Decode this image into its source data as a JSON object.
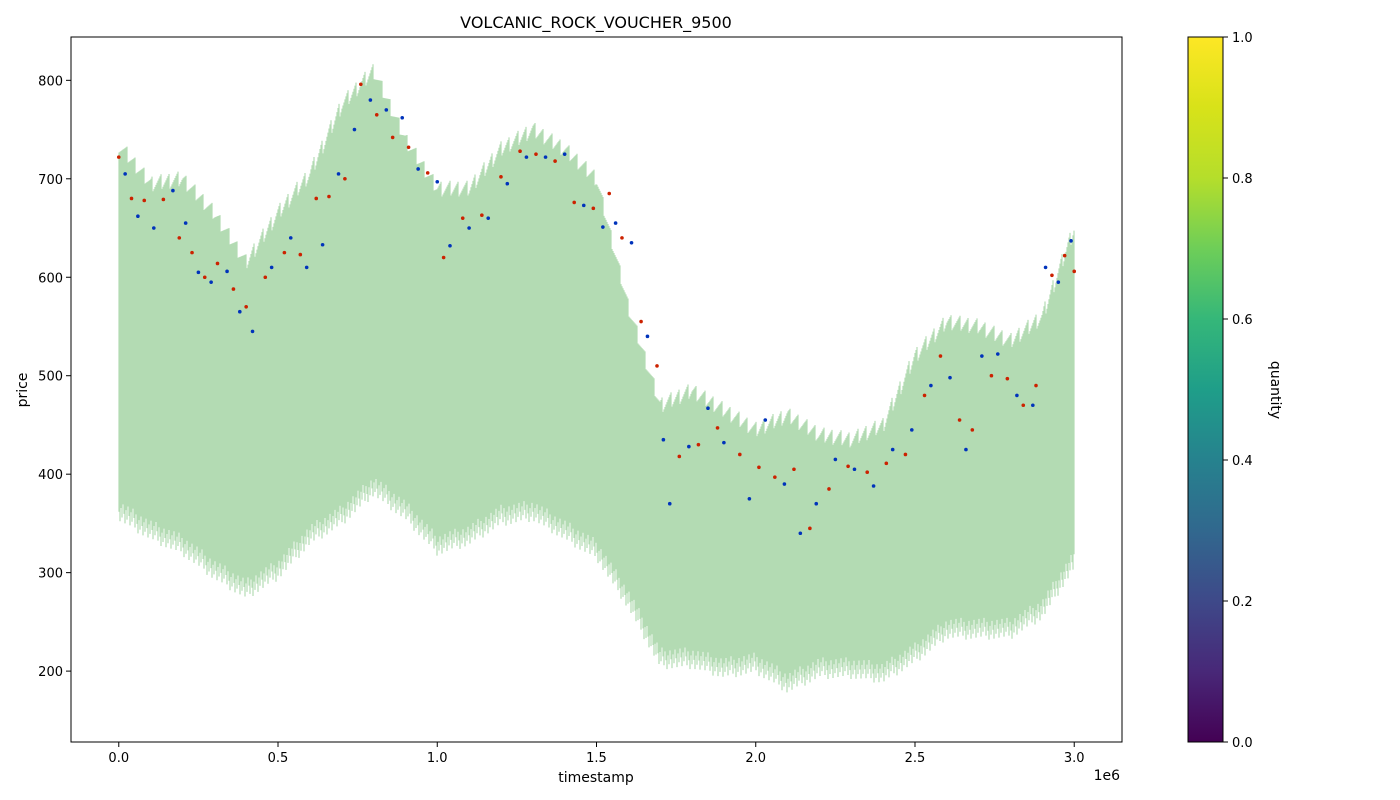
{
  "chart_data": {
    "type": "scatter",
    "title": "VOLCANIC_ROCK_VOUCHER_9500",
    "xlabel": "timestamp",
    "ylabel": "price",
    "x_offset_label": "1e6",
    "x_scale": 1000000,
    "xlim": [
      -0.15,
      3.15
    ],
    "ylim": [
      128,
      844
    ],
    "x_ticks": [
      0.0,
      0.5,
      1.0,
      1.5,
      2.0,
      2.5,
      3.0
    ],
    "x_tick_labels": [
      "0.0",
      "0.5",
      "1.0",
      "1.5",
      "2.0",
      "2.5",
      "3.0"
    ],
    "y_ticks": [
      200,
      300,
      400,
      500,
      600,
      700,
      800
    ],
    "y_tick_labels": [
      "200",
      "300",
      "400",
      "500",
      "600",
      "700",
      "800"
    ],
    "grid": false,
    "colorbar": {
      "label": "quantity",
      "ticks": [
        0.0,
        0.2,
        0.4,
        0.6,
        0.8,
        1.0
      ],
      "tick_labels": [
        "0.0",
        "0.2",
        "0.4",
        "0.6",
        "0.8",
        "1.0"
      ],
      "colormap": "viridis",
      "range": [
        0,
        1
      ]
    },
    "series": [
      {
        "kind": "band",
        "color": "#b3dbb3",
        "x": [
          0.0,
          0.1,
          0.2,
          0.3,
          0.4,
          0.5,
          0.6,
          0.7,
          0.8,
          0.9,
          1.0,
          1.1,
          1.2,
          1.3,
          1.4,
          1.5,
          1.6,
          1.7,
          1.8,
          1.9,
          2.0,
          2.1,
          2.2,
          2.3,
          2.4,
          2.5,
          2.6,
          2.7,
          2.8,
          2.9,
          3.0
        ],
        "low": [
          360,
          340,
          325,
          300,
          280,
          300,
          335,
          355,
          385,
          360,
          325,
          335,
          355,
          360,
          340,
          320,
          270,
          210,
          210,
          200,
          205,
          185,
          200,
          200,
          195,
          215,
          240,
          240,
          240,
          260,
          310
        ],
        "high": [
          735,
          695,
          700,
          665,
          615,
          665,
          705,
          775,
          810,
          740,
          690,
          690,
          730,
          750,
          730,
          700,
          570,
          470,
          485,
          465,
          445,
          460,
          440,
          435,
          450,
          520,
          555,
          550,
          535,
          560,
          650
        ]
      },
      {
        "kind": "trades",
        "color": "#cc2200",
        "x": [
          0.0,
          0.04,
          0.08,
          0.14,
          0.19,
          0.23,
          0.27,
          0.31,
          0.36,
          0.4,
          0.46,
          0.52,
          0.57,
          0.62,
          0.66,
          0.71,
          0.76,
          0.81,
          0.86,
          0.91,
          0.97,
          1.02,
          1.08,
          1.14,
          1.2,
          1.26,
          1.31,
          1.37,
          1.43,
          1.49,
          1.54,
          1.58,
          1.64,
          1.69,
          1.76,
          1.82,
          1.88,
          1.95,
          2.01,
          2.06,
          2.12,
          2.17,
          2.23,
          2.29,
          2.35,
          2.41,
          2.47,
          2.53,
          2.58,
          2.64,
          2.68,
          2.74,
          2.79,
          2.84,
          2.88,
          2.93,
          2.97,
          3.0
        ],
        "y": [
          722,
          680,
          678,
          679,
          640,
          625,
          600,
          614,
          588,
          570,
          600,
          625,
          623,
          680,
          682,
          700,
          796,
          765,
          742,
          732,
          706,
          620,
          660,
          663,
          702,
          728,
          725,
          718,
          676,
          670,
          685,
          640,
          555,
          510,
          418,
          430,
          447,
          420,
          407,
          397,
          405,
          345,
          385,
          408,
          402,
          411,
          420,
          480,
          520,
          455,
          445,
          500,
          497,
          470,
          490,
          602,
          622,
          606
        ]
      },
      {
        "kind": "trades",
        "color": "#0033bb",
        "x": [
          0.02,
          0.06,
          0.11,
          0.17,
          0.21,
          0.25,
          0.29,
          0.34,
          0.38,
          0.42,
          0.48,
          0.54,
          0.59,
          0.64,
          0.69,
          0.74,
          0.79,
          0.84,
          0.89,
          0.94,
          1.0,
          1.04,
          1.1,
          1.16,
          1.22,
          1.28,
          1.34,
          1.4,
          1.46,
          1.52,
          1.56,
          1.61,
          1.66,
          1.71,
          1.73,
          1.79,
          1.85,
          1.9,
          1.98,
          2.03,
          2.09,
          2.14,
          2.19,
          2.25,
          2.31,
          2.37,
          2.43,
          2.49,
          2.55,
          2.61,
          2.66,
          2.71,
          2.76,
          2.82,
          2.87,
          2.91,
          2.95,
          2.99
        ],
        "y": [
          705,
          662,
          650,
          688,
          655,
          605,
          595,
          606,
          565,
          545,
          610,
          640,
          610,
          633,
          705,
          750,
          780,
          770,
          762,
          710,
          697,
          632,
          650,
          660,
          695,
          722,
          722,
          725,
          673,
          651,
          655,
          635,
          540,
          435,
          370,
          428,
          467,
          432,
          375,
          455,
          390,
          340,
          370,
          415,
          405,
          388,
          425,
          445,
          490,
          498,
          425,
          520,
          522,
          480,
          470,
          610,
          595,
          637
        ]
      }
    ]
  }
}
